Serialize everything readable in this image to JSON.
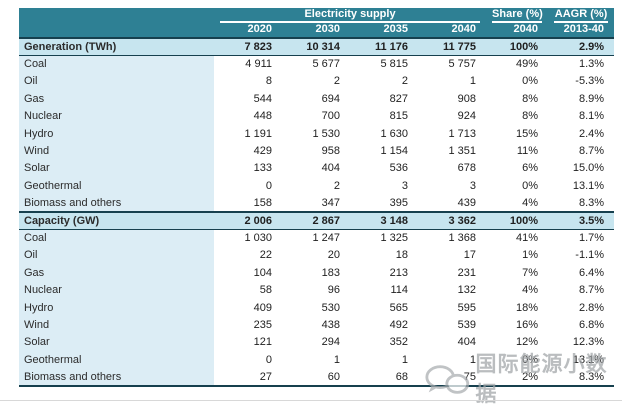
{
  "chart_data": {
    "type": "table",
    "title": "Electricity supply",
    "header": {
      "group_label": "Electricity supply",
      "share_label": "Share (%)",
      "aagr_label": "AAGR (%)",
      "years": [
        "2020",
        "2030",
        "2035",
        "2040"
      ],
      "share_year": "2040",
      "aagr_period": "2013-40"
    },
    "sections": [
      {
        "title": "Generation (TWh)",
        "totals": {
          "values": [
            "7 823",
            "10 314",
            "11 176",
            "11 775"
          ],
          "share": "100%",
          "aagr": "2.9%"
        },
        "rows": [
          {
            "label": "Coal",
            "values": [
              "4 911",
              "5 677",
              "5 815",
              "5 757"
            ],
            "share": "49%",
            "aagr": "1.3%"
          },
          {
            "label": "Oil",
            "values": [
              "8",
              "2",
              "2",
              "1"
            ],
            "share": "0%",
            "aagr": "-5.3%"
          },
          {
            "label": "Gas",
            "values": [
              "544",
              "694",
              "827",
              "908"
            ],
            "share": "8%",
            "aagr": "8.9%"
          },
          {
            "label": "Nuclear",
            "values": [
              "448",
              "700",
              "815",
              "924"
            ],
            "share": "8%",
            "aagr": "8.1%"
          },
          {
            "label": "Hydro",
            "values": [
              "1 191",
              "1 530",
              "1 630",
              "1 713"
            ],
            "share": "15%",
            "aagr": "2.4%"
          },
          {
            "label": "Wind",
            "values": [
              "429",
              "958",
              "1 154",
              "1 351"
            ],
            "share": "11%",
            "aagr": "8.7%"
          },
          {
            "label": "Solar",
            "values": [
              "133",
              "404",
              "536",
              "678"
            ],
            "share": "6%",
            "aagr": "15.0%"
          },
          {
            "label": "Geothermal",
            "values": [
              "0",
              "2",
              "3",
              "3"
            ],
            "share": "0%",
            "aagr": "13.1%"
          },
          {
            "label": "Biomass and others",
            "values": [
              "158",
              "347",
              "395",
              "439"
            ],
            "share": "4%",
            "aagr": "8.3%"
          }
        ]
      },
      {
        "title": "Capacity (GW)",
        "totals": {
          "values": [
            "2 006",
            "2 867",
            "3 148",
            "3 362"
          ],
          "share": "100%",
          "aagr": "3.5%"
        },
        "rows": [
          {
            "label": "Coal",
            "values": [
              "1 030",
              "1 247",
              "1 325",
              "1 368"
            ],
            "share": "41%",
            "aagr": "1.7%"
          },
          {
            "label": "Oil",
            "values": [
              "22",
              "20",
              "18",
              "17"
            ],
            "share": "1%",
            "aagr": "-1.1%"
          },
          {
            "label": "Gas",
            "values": [
              "104",
              "183",
              "213",
              "231"
            ],
            "share": "7%",
            "aagr": "6.4%"
          },
          {
            "label": "Nuclear",
            "values": [
              "58",
              "96",
              "114",
              "132"
            ],
            "share": "4%",
            "aagr": "8.7%"
          },
          {
            "label": "Hydro",
            "values": [
              "409",
              "530",
              "565",
              "595"
            ],
            "share": "18%",
            "aagr": "2.8%"
          },
          {
            "label": "Wind",
            "values": [
              "235",
              "438",
              "492",
              "539"
            ],
            "share": "16%",
            "aagr": "6.8%"
          },
          {
            "label": "Solar",
            "values": [
              "121",
              "294",
              "352",
              "404"
            ],
            "share": "12%",
            "aagr": "12.3%"
          },
          {
            "label": "Geothermal",
            "values": [
              "0",
              "1",
              "1",
              "1"
            ],
            "share": "0%",
            "aagr": "13.1%"
          },
          {
            "label": "Biomass and others",
            "values": [
              "27",
              "60",
              "68",
              "75"
            ],
            "share": "2%",
            "aagr": "8.3%"
          }
        ]
      }
    ],
    "layout": {
      "grid": false,
      "label_column_first": true
    }
  },
  "watermark": {
    "text": "国际能源小数据"
  },
  "colors": {
    "header_teal": "#2e8094",
    "section_row_bg": "#c7e5ef",
    "label_column_bg": "#dcedf5",
    "dark_border": "#16404e",
    "watermark_gray": "#a0a4a7"
  }
}
